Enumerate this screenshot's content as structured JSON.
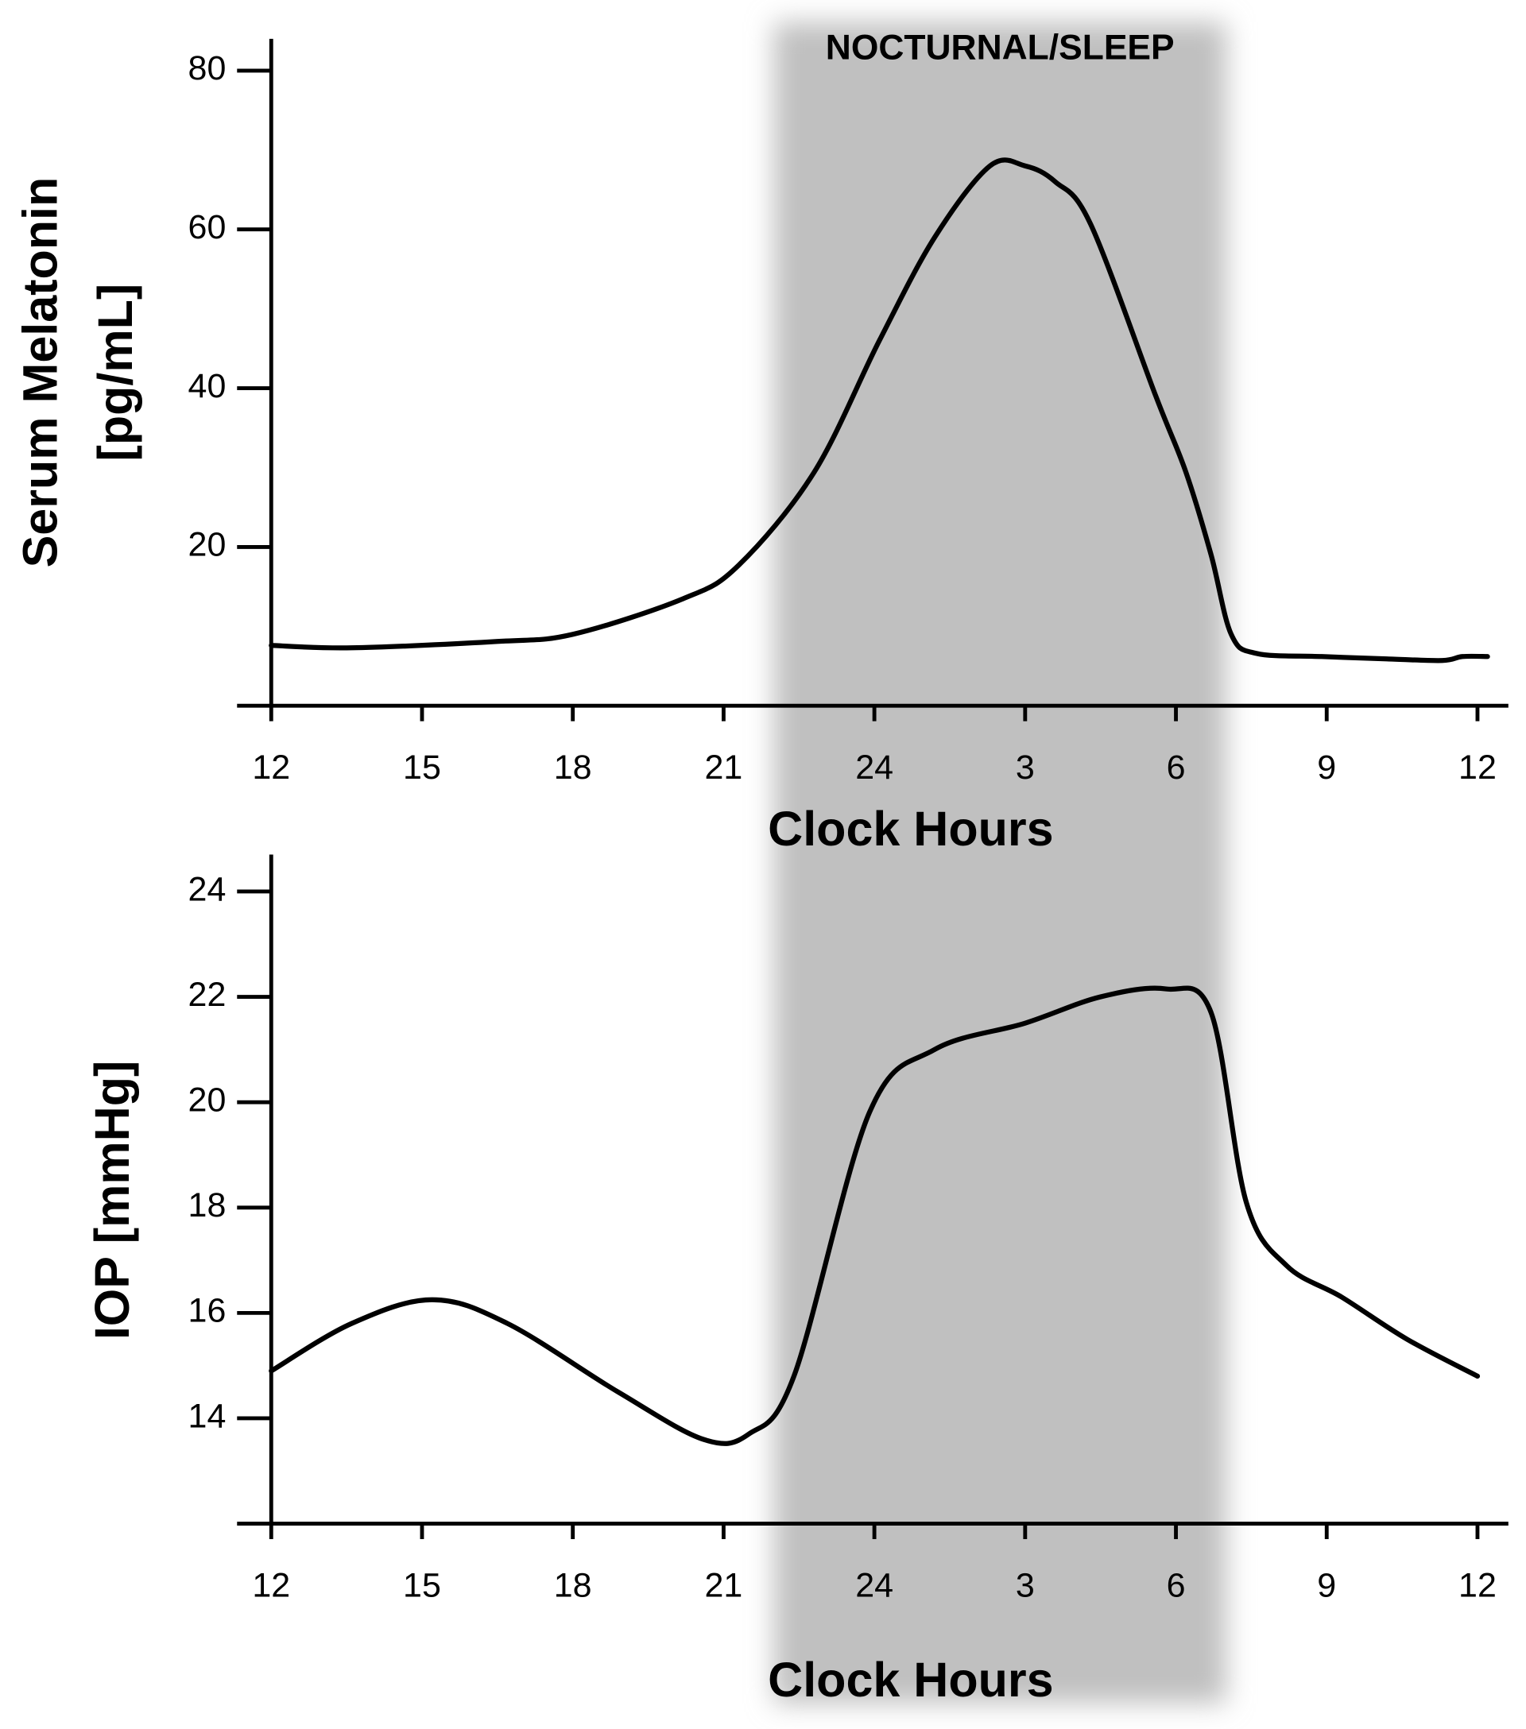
{
  "chart_data": [
    {
      "type": "line",
      "ylabel": [
        "Serum Melatonin",
        "[pg/mL]"
      ],
      "xlabel": "Clock Hours",
      "annotation": "NOCTURNAL/SLEEP",
      "shaded_range": [
        22,
        31
      ],
      "shade_color": "#c0c0c0",
      "x": [
        12,
        13.6,
        16.5,
        18,
        20.2,
        21.3,
        22.8,
        24.1,
        25.2,
        26.3,
        27,
        27.6,
        28.3,
        29.6,
        30.2,
        30.7,
        31.1,
        31.6,
        32.9,
        34.2,
        35.3,
        35.7,
        36.2
      ],
      "series": [
        {
          "name": "Serum Melatonin",
          "color": "#000000",
          "values": [
            7.6,
            7.3,
            8.1,
            9,
            13.5,
            17.7,
            29.4,
            46,
            59,
            68,
            68,
            66,
            60.7,
            39,
            29.4,
            19,
            9,
            6.6,
            6.2,
            5.9,
            5.7,
            6.2,
            6.2
          ]
        }
      ],
      "xlim": [
        12,
        36.5
      ],
      "xticks": [
        12,
        15,
        18,
        21,
        24,
        {
          "value": 27,
          "label": "3"
        },
        {
          "value": 30,
          "label": "6"
        },
        {
          "value": 33,
          "label": "9"
        },
        {
          "value": 36,
          "label": "12"
        }
      ],
      "ylim": [
        0,
        84
      ],
      "yticks": [
        20,
        40,
        60,
        80
      ]
    },
    {
      "type": "line",
      "ylabel": [
        "IOP [mmHg]"
      ],
      "xlabel": "Clock Hours",
      "x": [
        12,
        13.6,
        15.2,
        16.7,
        18.9,
        20.6,
        21.5,
        22.4,
        23.9,
        25.2,
        27,
        28.5,
        29.8,
        30.7,
        31.4,
        32.2,
        33.3,
        34.6,
        36
      ],
      "series": [
        {
          "name": "IOP",
          "color": "#000000",
          "values": [
            14.9,
            15.8,
            16.25,
            15.8,
            14.5,
            13.6,
            13.7,
            14.8,
            19.8,
            21.0,
            21.5,
            22,
            22.15,
            21.7,
            18.1,
            16.9,
            16.3,
            15.5,
            14.8
          ]
        }
      ],
      "xlim": [
        12,
        36.5
      ],
      "xticks": [
        12,
        15,
        18,
        21,
        24,
        {
          "value": 27,
          "label": "3"
        },
        {
          "value": 30,
          "label": "6"
        },
        {
          "value": 33,
          "label": "9"
        },
        {
          "value": 36,
          "label": "12"
        }
      ],
      "ylim": [
        12,
        24.7
      ],
      "yticks": [
        14,
        16,
        18,
        20,
        22,
        24
      ]
    }
  ]
}
